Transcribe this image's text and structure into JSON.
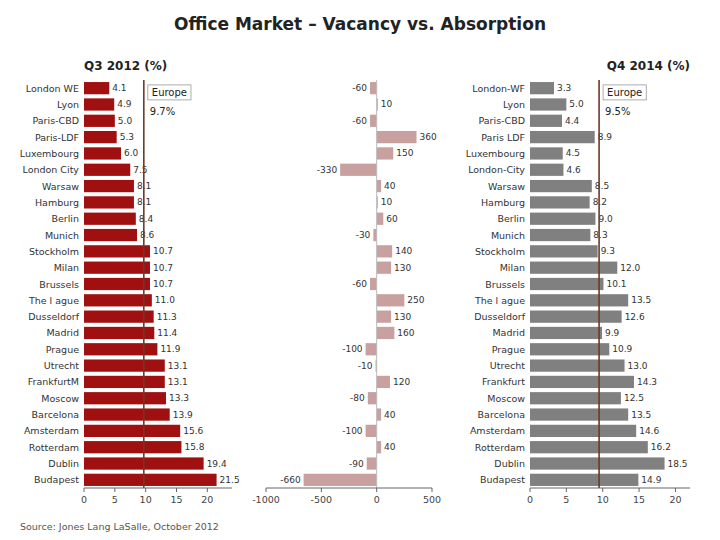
{
  "chart_data": [
    {
      "type": "bar",
      "orientation": "horizontal",
      "title": "Office Market – Vacancy vs. Absorption",
      "subtitle": "Q3 2012 (%)",
      "categories": [
        "London WE",
        "Lyon",
        "Paris-CBD",
        "Paris-LDF",
        "Luxembourg",
        "London City",
        "Warsaw",
        "Hamburg",
        "Berlin",
        "Munich",
        "Stockholm",
        "Milan",
        "Brussels",
        "The l ague",
        "Dusseldorf",
        "Madrid",
        "Prague",
        "Utrecht",
        "FrankfurtM",
        "Moscow",
        "Barcelona",
        "Amsterdam",
        "Rotterdam",
        "Dublin",
        "Budapest"
      ],
      "values": [
        4.1,
        4.9,
        5.0,
        5.3,
        6.0,
        7.5,
        8.1,
        8.1,
        8.4,
        8.6,
        10.7,
        10.7,
        10.7,
        11.0,
        11.3,
        11.4,
        11.9,
        13.1,
        13.1,
        13.3,
        13.9,
        15.6,
        15.8,
        19.4,
        21.5
      ],
      "value_labels": [
        "4.1",
        "4.9",
        "5.0",
        "5.3",
        "6.0",
        "7.5",
        "8.1",
        "8.1",
        "8.4",
        "8.6",
        "10.7",
        "10.7",
        "10.7",
        "11.0",
        "11.3",
        "11.4",
        "11.9",
        "13.1",
        "13.1",
        "13.3",
        "13.9",
        "15.6",
        "15.8",
        "19.4",
        "21.5"
      ],
      "data_labels": true,
      "color": "#A01010",
      "xlim": [
        0,
        24
      ],
      "xticks": [
        0,
        5,
        10,
        15,
        20
      ],
      "grid": false,
      "reference_line": {
        "name": "Europe",
        "value": 9.7,
        "label": "9.7%",
        "color": "#6B3A2A"
      },
      "annotations": [
        "Source: Jones Lang LaSalle, October 2012"
      ]
    },
    {
      "type": "bar",
      "orientation": "horizontal",
      "categories": [
        null,
        null,
        null,
        null,
        null,
        null,
        null,
        null,
        null,
        null,
        null,
        null,
        null,
        null,
        null,
        null,
        null,
        null,
        null,
        null,
        null,
        null,
        null,
        null,
        null
      ],
      "values": [
        -60,
        10,
        -60,
        360,
        150,
        -330,
        40,
        10,
        60,
        -30,
        140,
        130,
        -60,
        250,
        130,
        160,
        -100,
        -10,
        120,
        -80,
        40,
        -100,
        40,
        -90,
        -660
      ],
      "data_labels": true,
      "color": "#C8A0A0",
      "xlim": [
        -1000,
        500
      ],
      "xticks": [
        -1000,
        -500,
        0,
        500
      ],
      "grid": false,
      "tick_labels": "x"
    },
    {
      "type": "bar",
      "orientation": "horizontal",
      "subtitle": "Q4 2014 (%)",
      "categories": [
        "London-WF",
        "Lyon",
        "Paris-CBD",
        "Paris LDF",
        "Luxembourg",
        "London-City",
        "Warsaw",
        "Hamburg",
        "Berlin",
        "Munich",
        "Stockholm",
        "Milan",
        "Brussels",
        "The l ague",
        "Dusseldorf",
        "Madrid",
        "Prague",
        "Utrecht",
        "Frankfurt",
        "Moscow",
        "Barcelona",
        "Amsterdam",
        "Rotterdam",
        "Dublin",
        "Budapest"
      ],
      "values": [
        3.3,
        5.0,
        4.4,
        8.9,
        4.5,
        4.6,
        8.5,
        8.2,
        9.0,
        8.3,
        9.3,
        12.0,
        10.1,
        13.5,
        12.6,
        9.9,
        10.9,
        13.0,
        14.3,
        12.5,
        13.5,
        14.6,
        16.2,
        18.5,
        14.9
      ],
      "value_labels": [
        "3.3",
        "5.0",
        "4.4",
        "8.9",
        "4.5",
        "4.6",
        "8.5",
        "8.2",
        "9.0",
        "8.3",
        "9.3",
        "12.0",
        "10.1",
        "13.5",
        "12.6",
        "9.9",
        "10.9",
        "13.0",
        "14.3",
        "12.5",
        "13.5",
        "14.6",
        "16.2",
        "18.5",
        "14.9"
      ],
      "data_labels": true,
      "color": "#808080",
      "xlim": [
        0,
        22
      ],
      "xticks": [
        0,
        5,
        10,
        15,
        20
      ],
      "grid": false,
      "reference_line": {
        "name": "Europe",
        "value": 9.5,
        "label": "9.5%",
        "color": "#6B3A2A"
      }
    }
  ]
}
